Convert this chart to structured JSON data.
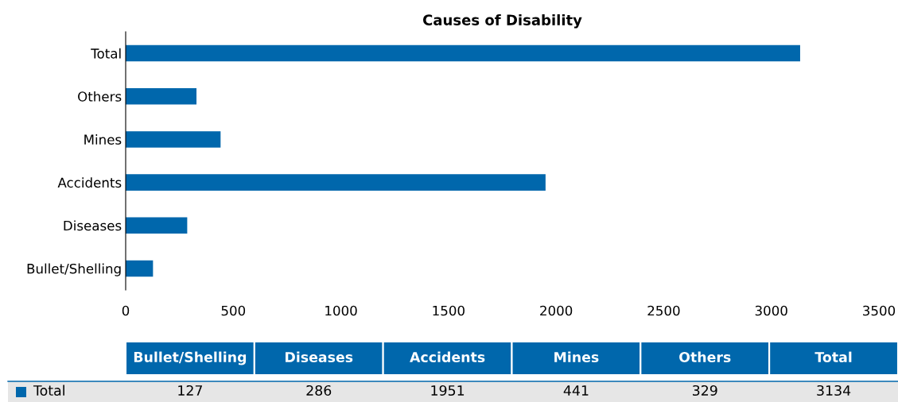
{
  "chart_data": [
    {
      "type": "bar",
      "orientation": "horizontal",
      "title": "Causes of Disability",
      "categories": [
        "Total",
        "Others",
        "Mines",
        "Accidents",
        "Diseases",
        "Bullet/Shelling"
      ],
      "series": [
        {
          "color": "#0067ac",
          "values": [
            3134,
            329,
            441,
            1951,
            286,
            127
          ]
        }
      ],
      "xlim": [
        0,
        3500
      ],
      "xticks": [
        0,
        500,
        1000,
        1500,
        2000,
        2500,
        3000,
        3500
      ],
      "grid": false
    },
    {
      "type": "other",
      "categories": [
        "Bullet/Shelling",
        "Diseases",
        "Accidents",
        "Mines",
        "Others",
        "Total"
      ],
      "series": [
        {
          "name": "Total",
          "values": [
            127,
            286,
            1951,
            441,
            329,
            3134
          ]
        }
      ],
      "data_labels": true
    }
  ]
}
